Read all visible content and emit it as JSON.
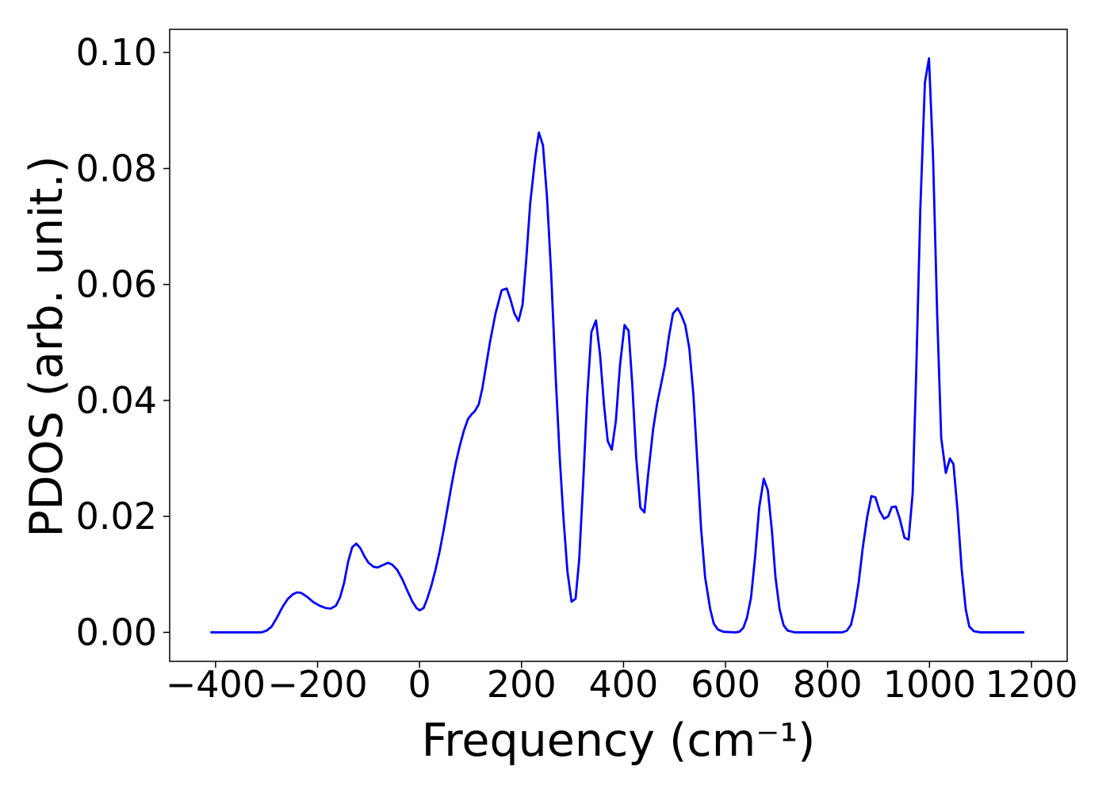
{
  "chart_data": {
    "type": "line",
    "xlabel": "Frequency (cm⁻¹)",
    "ylabel": "PDOS (arb. unit.)",
    "xlim": [
      -490,
      1270
    ],
    "ylim": [
      -0.005,
      0.104
    ],
    "xticks": [
      {
        "value": -400,
        "label": "−400"
      },
      {
        "value": -200,
        "label": "−200"
      },
      0,
      200,
      400,
      600,
      800,
      1000,
      1200
    ],
    "yticks": [
      {
        "value": 0,
        "label": "0.00"
      },
      0.02,
      0.04,
      0.06,
      0.08,
      {
        "value": 0.1,
        "label": "0.10"
      }
    ],
    "grid": false,
    "series": [
      {
        "color": "#0000ff",
        "x": [
          -410,
          -310,
          -300,
          -290,
          -280,
          -268,
          -258,
          -248,
          -240,
          -232,
          -220,
          -208,
          -196,
          -184,
          -174,
          -164,
          -156,
          -148,
          -140,
          -132,
          -124,
          -116,
          -108,
          -100,
          -90,
          -82,
          -72,
          -62,
          -54,
          -44,
          -34,
          -24,
          -14,
          -6,
          0,
          8,
          15,
          23,
          31,
          39,
          47,
          55,
          63,
          71,
          79,
          87,
          95,
          103,
          108,
          116,
          123,
          138,
          149,
          161,
          171,
          178,
          186,
          194,
          202,
          209,
          217,
          227,
          234,
          242,
          250,
          258,
          267,
          275,
          282,
          290,
          298,
          306,
          313,
          321,
          329,
          337,
          346,
          354,
          362,
          369,
          377,
          385,
          393,
          402,
          410,
          417,
          425,
          433,
          441,
          448,
          458,
          466,
          473,
          481,
          489,
          497,
          506,
          513,
          521,
          529,
          537,
          545,
          552,
          560,
          570,
          577,
          585,
          596,
          619,
          627,
          635,
          642,
          650,
          658,
          666,
          675,
          683,
          691,
          698,
          706,
          714,
          722,
          736,
          829,
          838,
          846,
          853,
          861,
          869,
          878,
          886,
          894,
          902,
          911,
          919,
          926,
          934,
          942,
          951,
          959,
          967,
          974,
          982,
          991,
          999,
          1007,
          1015,
          1023,
          1032,
          1040,
          1047,
          1055,
          1063,
          1071,
          1078,
          1087,
          1100,
          1186
        ],
        "values": [
          0,
          0,
          0.0003,
          0.001,
          0.0025,
          0.0045,
          0.0058,
          0.0066,
          0.0069,
          0.0068,
          0.0061,
          0.0052,
          0.0046,
          0.0042,
          0.0041,
          0.0046,
          0.006,
          0.0085,
          0.0122,
          0.0147,
          0.0153,
          0.0145,
          0.0131,
          0.012,
          0.0113,
          0.0112,
          0.0116,
          0.012,
          0.0117,
          0.0108,
          0.0092,
          0.0072,
          0.0053,
          0.0042,
          0.0038,
          0.0042,
          0.0058,
          0.008,
          0.0107,
          0.0138,
          0.0175,
          0.0215,
          0.0255,
          0.0292,
          0.0322,
          0.0348,
          0.0368,
          0.0377,
          0.0381,
          0.0393,
          0.042,
          0.05,
          0.055,
          0.059,
          0.0593,
          0.0575,
          0.055,
          0.0537,
          0.0565,
          0.064,
          0.074,
          0.082,
          0.0862,
          0.084,
          0.075,
          0.062,
          0.044,
          0.03,
          0.02,
          0.0105,
          0.0053,
          0.0058,
          0.0125,
          0.026,
          0.041,
          0.0518,
          0.0538,
          0.0478,
          0.039,
          0.033,
          0.0315,
          0.0365,
          0.046,
          0.053,
          0.052,
          0.043,
          0.03,
          0.0215,
          0.0207,
          0.027,
          0.035,
          0.0395,
          0.0425,
          0.046,
          0.051,
          0.055,
          0.0559,
          0.0548,
          0.053,
          0.049,
          0.041,
          0.029,
          0.018,
          0.0095,
          0.004,
          0.0015,
          0.0005,
          0.0001,
          0,
          0.0001,
          0.0008,
          0.0025,
          0.006,
          0.013,
          0.0215,
          0.0265,
          0.0245,
          0.0175,
          0.0095,
          0.004,
          0.0012,
          0.0003,
          0,
          0,
          0.0003,
          0.0013,
          0.004,
          0.0085,
          0.0145,
          0.02,
          0.0235,
          0.0233,
          0.021,
          0.0196,
          0.02,
          0.0216,
          0.0217,
          0.0195,
          0.0163,
          0.016,
          0.024,
          0.045,
          0.073,
          0.0948,
          0.099,
          0.082,
          0.055,
          0.0335,
          0.0275,
          0.03,
          0.029,
          0.021,
          0.011,
          0.004,
          0.001,
          0.0002,
          0,
          0
        ]
      }
    ]
  }
}
